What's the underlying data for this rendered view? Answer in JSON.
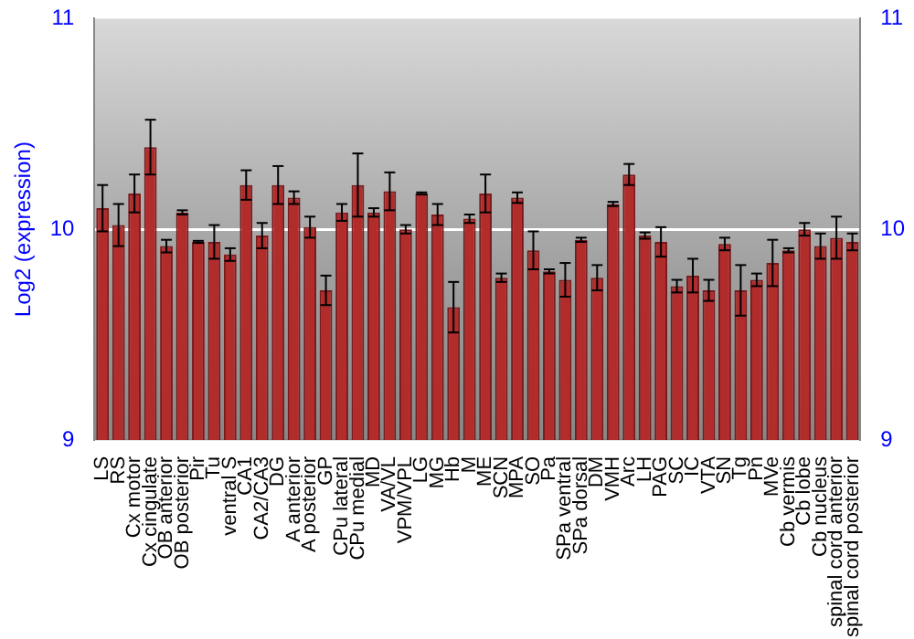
{
  "chart_data": {
    "type": "bar",
    "ylabel": "Log2 (expression)",
    "categories": [
      "LS",
      "RS",
      "Cx motor",
      "Cx cingulate",
      "OB anterior",
      "OB posterior",
      "Pir",
      "Tu",
      "ventral S",
      "CA1",
      "CA2/CA3",
      "DG",
      "A anterior",
      "A posterior",
      "GP",
      "CPu lateral",
      "CPu medial",
      "MD",
      "VA/VL",
      "VPM/VPL",
      "LG",
      "MG",
      "Hb",
      "M",
      "ME",
      "SCN",
      "MPA",
      "SO",
      "Pa",
      "SPa ventral",
      "SPa dorsal",
      "DM",
      "VMH",
      "Arc",
      "LH",
      "PAG",
      "SC",
      "IC",
      "VTA",
      "SN",
      "Tg",
      "Pn",
      "MVe",
      "Cb vermis",
      "Cb lobe",
      "Cb nucleus",
      "spinal cord anterior",
      "spinal cord posterior"
    ],
    "values": [
      10.1,
      10.02,
      10.17,
      10.39,
      9.92,
      10.08,
      9.94,
      9.94,
      9.88,
      10.21,
      9.97,
      10.21,
      10.15,
      10.01,
      9.71,
      10.08,
      10.21,
      10.08,
      10.18,
      10.0,
      10.17,
      10.07,
      9.63,
      10.05,
      10.17,
      9.77,
      10.15,
      9.9,
      9.8,
      9.76,
      9.95,
      9.77,
      10.12,
      10.26,
      9.97,
      9.94,
      9.73,
      9.78,
      9.71,
      9.93,
      9.71,
      9.76,
      9.84,
      9.9,
      10.0,
      9.92,
      9.96,
      9.94
    ],
    "errors": [
      0.11,
      0.1,
      0.09,
      0.13,
      0.03,
      0.01,
      0.005,
      0.08,
      0.03,
      0.07,
      0.06,
      0.09,
      0.03,
      0.05,
      0.07,
      0.04,
      0.15,
      0.02,
      0.09,
      0.02,
      0.005,
      0.05,
      0.12,
      0.02,
      0.09,
      0.02,
      0.025,
      0.09,
      0.01,
      0.08,
      0.01,
      0.06,
      0.01,
      0.05,
      0.015,
      0.07,
      0.03,
      0.08,
      0.05,
      0.03,
      0.12,
      0.03,
      0.11,
      0.01,
      0.03,
      0.06,
      0.1,
      0.04
    ],
    "color": "#b22c2c",
    "ylim": [
      9,
      11
    ],
    "yticks": [
      9,
      10,
      11
    ],
    "y2lim": [
      9,
      11
    ],
    "y2ticks": [
      9,
      10,
      11
    ],
    "grid": "y"
  }
}
